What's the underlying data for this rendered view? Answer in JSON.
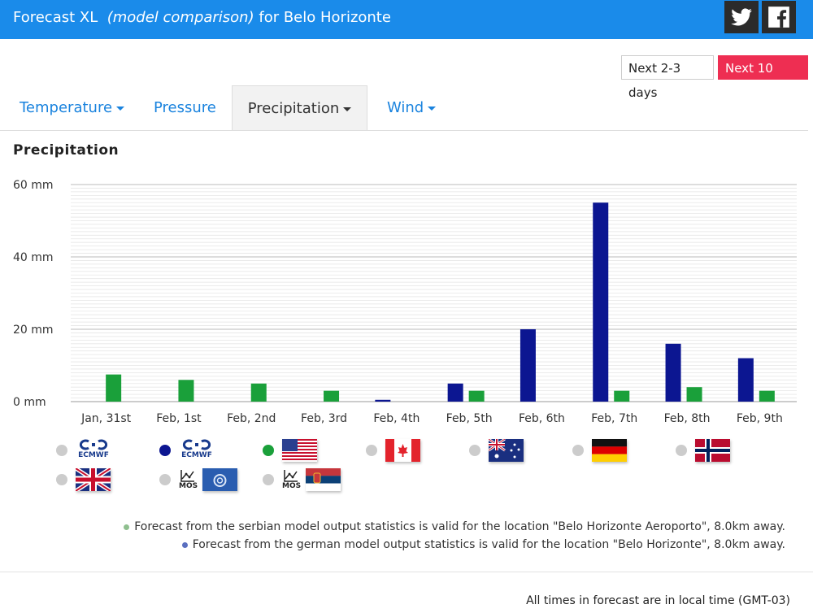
{
  "header": {
    "title_main": "Forecast XL",
    "title_sub": "(model comparison)",
    "title_rest": "for Belo Horizonte"
  },
  "range": {
    "short_label": "Next 2-3 days",
    "long_label": "Next 10 days"
  },
  "tabs": [
    {
      "label": "Temperature"
    },
    {
      "label": "Pressure"
    },
    {
      "label": "Precipitation"
    },
    {
      "label": "Wind"
    }
  ],
  "section": {
    "title": "Precipitation"
  },
  "chart_data": {
    "type": "bar",
    "title": "",
    "categories": [
      "Jan, 31st",
      "Feb, 1st",
      "Feb, 2nd",
      "Feb, 3rd",
      "Feb, 4th",
      "Feb, 5th",
      "Feb, 6th",
      "Feb, 7th",
      "Feb, 8th",
      "Feb, 9th"
    ],
    "series": [
      {
        "color": "#0c1691",
        "values": [
          null,
          null,
          null,
          null,
          0.5,
          5,
          20,
          55,
          16,
          12
        ]
      },
      {
        "color": "#1aa03a",
        "values": [
          7.5,
          6,
          5,
          3,
          null,
          3,
          null,
          3,
          4,
          3
        ]
      }
    ],
    "yticks": [
      "0 mm",
      "20 mm",
      "40 mm",
      "60 mm"
    ],
    "ylim": [
      0,
      60
    ],
    "grid": true
  },
  "legend": [
    {
      "dot": "#cccccc",
      "icon": "ecmwf-logo-icon",
      "label": "ECMWF"
    },
    {
      "dot": "#0c1691",
      "icon": "ecmwf-logo-icon",
      "label": "ECMWF"
    },
    {
      "dot": "#1aa03a",
      "icon": "usa-flag-icon"
    },
    {
      "dot": "#cccccc",
      "icon": "canada-flag-icon"
    },
    {
      "dot": "#cccccc",
      "icon": "australia-flag-icon"
    },
    {
      "dot": "#cccccc",
      "icon": "germany-flag-icon"
    },
    {
      "dot": "#cccccc",
      "icon": "norway-flag-icon"
    },
    {
      "dot": "#cccccc",
      "icon": "uk-flag-icon"
    },
    {
      "dot": "#cccccc",
      "icon": "mos-germany-icon",
      "label": "MOS"
    },
    {
      "dot": "#cccccc",
      "icon": "mos-serbia-icon",
      "label": "MOS"
    }
  ],
  "notes": [
    {
      "color": "#8fbf8f",
      "text": "Forecast from the serbian model output statistics is valid for the location \"Belo Horizonte Aeroporto\", 8.0km away."
    },
    {
      "color": "#5a6fc0",
      "text": "Forecast from the german model output statistics is valid for the location \"Belo Horizonte\", 8.0km away."
    }
  ],
  "footer": {
    "text": "All times in forecast are in local time (GMT-03)"
  }
}
